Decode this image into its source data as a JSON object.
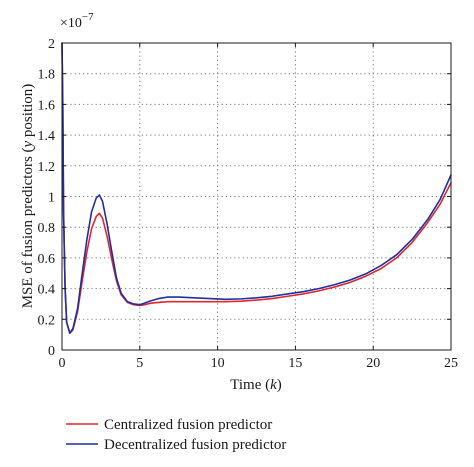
{
  "chart_data": {
    "type": "line",
    "title": "",
    "xlabel_prefix": "Time (",
    "xlabel_var": "k",
    "xlabel_suffix": ")",
    "ylabel_prefix": "MSE of fusion predictors (",
    "ylabel_var": "y",
    "ylabel_suffix": " position)",
    "y_multiplier_base": "×10",
    "y_multiplier_exp": "−7",
    "xlim": [
      0,
      25
    ],
    "ylim": [
      0,
      2
    ],
    "xticks": [
      0,
      5,
      10,
      15,
      20,
      25
    ],
    "xtick_labels": [
      "0",
      "5",
      "10",
      "15",
      "20",
      "25"
    ],
    "yticks": [
      0,
      0.2,
      0.4,
      0.6,
      0.8,
      1,
      1.2,
      1.4,
      1.6,
      1.8,
      2
    ],
    "ytick_labels": [
      "0",
      "0.2",
      "0.4",
      "0.6",
      "0.8",
      "1",
      "1.2",
      "1.4",
      "1.6",
      "1.8",
      "2"
    ],
    "grid": true,
    "legend_position": "below",
    "series": [
      {
        "name": "Centralized fusion predictor",
        "color": "#e0262e",
        "x": [
          0,
          0.05,
          0.1,
          0.2,
          0.3,
          0.5,
          0.7,
          1.0,
          1.3,
          1.6,
          1.9,
          2.2,
          2.4,
          2.6,
          2.9,
          3.2,
          3.5,
          3.8,
          4.2,
          4.6,
          5.0,
          5.3,
          5.7,
          6.2,
          6.8,
          7.5,
          8.5,
          9.5,
          10.5,
          11.5,
          12.5,
          13.5,
          14.5,
          15.5,
          16.5,
          17.5,
          18.5,
          19.5,
          20.5,
          21.5,
          22.5,
          23.5,
          24.3,
          25
        ],
        "y": [
          2.0,
          1.6,
          0.9,
          0.4,
          0.18,
          0.11,
          0.13,
          0.25,
          0.45,
          0.64,
          0.79,
          0.87,
          0.89,
          0.86,
          0.74,
          0.59,
          0.45,
          0.36,
          0.31,
          0.295,
          0.29,
          0.295,
          0.305,
          0.31,
          0.315,
          0.315,
          0.315,
          0.315,
          0.315,
          0.318,
          0.325,
          0.335,
          0.35,
          0.365,
          0.385,
          0.41,
          0.44,
          0.48,
          0.53,
          0.6,
          0.7,
          0.83,
          0.95,
          1.09
        ]
      },
      {
        "name": "Decentralized fusion predictor",
        "color": "#1f2f9e",
        "x": [
          0,
          0.05,
          0.1,
          0.2,
          0.3,
          0.5,
          0.7,
          1.0,
          1.3,
          1.6,
          1.9,
          2.2,
          2.4,
          2.6,
          2.9,
          3.2,
          3.5,
          3.8,
          4.2,
          4.6,
          5.0,
          5.3,
          5.7,
          6.2,
          6.8,
          7.5,
          8.5,
          9.5,
          10.5,
          11.5,
          12.5,
          13.5,
          14.5,
          15.5,
          16.5,
          17.5,
          18.5,
          19.5,
          20.5,
          21.5,
          22.5,
          23.5,
          24.3,
          25
        ],
        "y": [
          2.0,
          1.6,
          0.9,
          0.4,
          0.18,
          0.11,
          0.14,
          0.27,
          0.5,
          0.72,
          0.9,
          0.99,
          1.01,
          0.97,
          0.82,
          0.64,
          0.47,
          0.37,
          0.315,
          0.3,
          0.295,
          0.305,
          0.32,
          0.335,
          0.345,
          0.345,
          0.34,
          0.335,
          0.33,
          0.333,
          0.34,
          0.35,
          0.365,
          0.38,
          0.4,
          0.425,
          0.455,
          0.495,
          0.55,
          0.62,
          0.72,
          0.85,
          0.98,
          1.14
        ]
      }
    ]
  }
}
